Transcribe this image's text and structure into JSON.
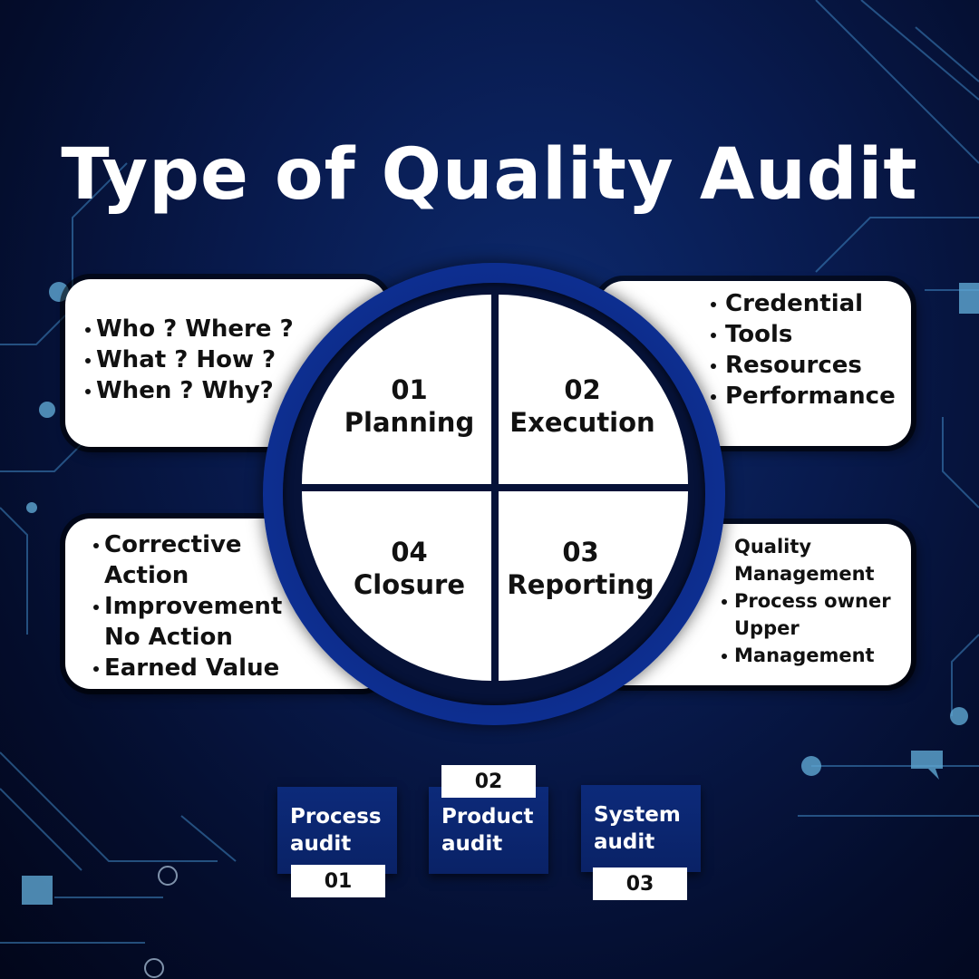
{
  "title": "Type of Quality Audit",
  "quadrants": [
    {
      "number": "01",
      "label": "Planning"
    },
    {
      "number": "02",
      "label": "Execution"
    },
    {
      "number": "03",
      "label": "Reporting"
    },
    {
      "number": "04",
      "label": "Closure"
    }
  ],
  "cards": {
    "planning": [
      "Who ? Where ?",
      "What ? How ?",
      "When ? Why?"
    ],
    "execution": [
      "Credential",
      "Tools",
      "Resources",
      "Performance"
    ],
    "closure": [
      "Corrective",
      "Action",
      "Improvement",
      "No Action",
      "Earned Value"
    ],
    "reporting": [
      "Quality",
      "Management",
      "Process owner",
      "Upper",
      "Management"
    ]
  },
  "audits": [
    {
      "label_line1": "Process",
      "label_line2": "audit",
      "number": "01"
    },
    {
      "label_line1": "Product",
      "label_line2": "audit",
      "number": "02"
    },
    {
      "label_line1": "System",
      "label_line2": "audit",
      "number": "03"
    }
  ],
  "colors": {
    "accent_blue": "#1b4bd1",
    "circuit_blue": "#5fa8d3",
    "background": "#081a4d"
  }
}
